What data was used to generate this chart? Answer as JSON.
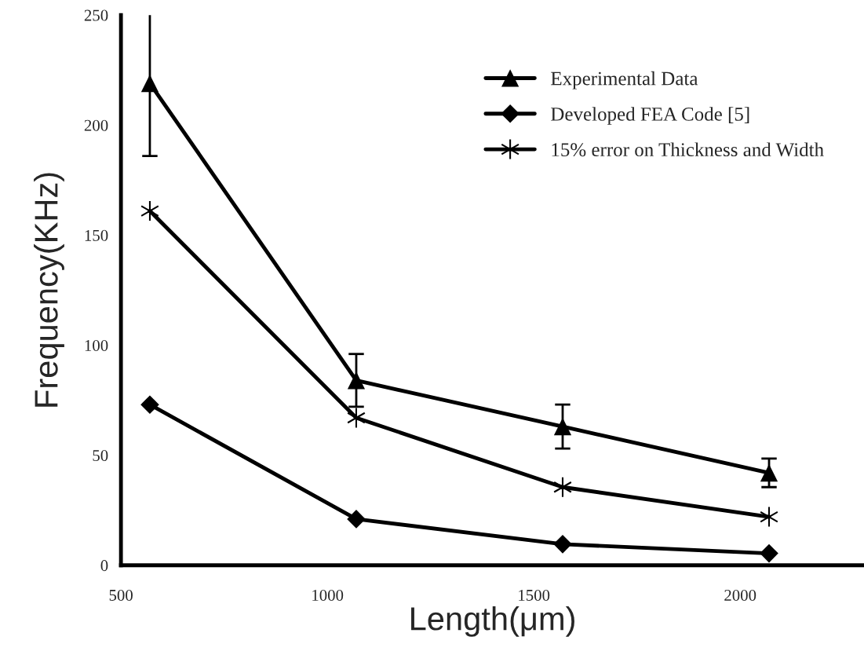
{
  "chart_data": {
    "type": "line",
    "xlabel": "Length(μm)",
    "ylabel": "Frequency(KHz)",
    "xlim": [
      500,
      2300
    ],
    "xticks": [
      500,
      1000,
      1500,
      2000
    ],
    "ylim": [
      0,
      250
    ],
    "yticks": [
      0,
      50,
      100,
      150,
      200,
      250
    ],
    "grid": false,
    "legend": "top right",
    "line_style": "solid",
    "series": [
      {
        "name": "Experimental Data",
        "color": "#000000",
        "marker": "triangle",
        "x": [
          570,
          1070,
          1570,
          2070
        ],
        "values": [
          219,
          84,
          63,
          42
        ],
        "errors": [
          33,
          12,
          10,
          6.5
        ]
      },
      {
        "name": "Developed FEA Code [5]",
        "color": "#000000",
        "marker": "diamond",
        "x": [
          570,
          1070,
          1570,
          2070
        ],
        "values": [
          73,
          21,
          9.6,
          5.4
        ]
      },
      {
        "name": "15% error on Thickness and Width",
        "color": "#000000",
        "marker": "cross",
        "x": [
          570,
          1070,
          1570,
          2070
        ],
        "values": [
          161,
          67,
          35.5,
          22
        ]
      }
    ]
  }
}
